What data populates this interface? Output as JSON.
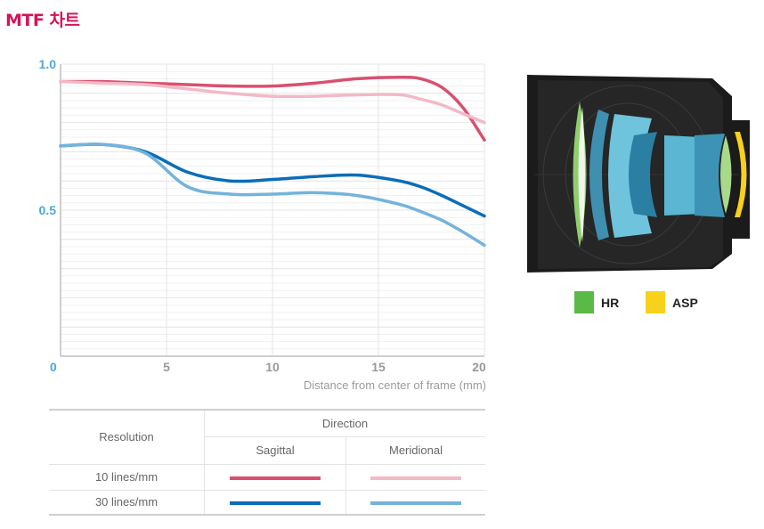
{
  "page_title": "MTF 차트",
  "chart_data": {
    "type": "line",
    "xlabel": "Distance from center of frame (mm)",
    "ylabel": "",
    "xlim": [
      0,
      20
    ],
    "ylim": [
      0,
      1.0
    ],
    "x_ticks": [
      "0",
      "5",
      "10",
      "15",
      "20"
    ],
    "y_ticks": [
      "0.5",
      "1.0"
    ],
    "grid": true,
    "x": [
      0,
      2,
      4,
      6,
      8,
      10,
      12,
      14,
      16,
      17,
      18,
      19,
      20
    ],
    "series": [
      {
        "name": "10 lines/mm Sagittal",
        "color": "#d9506f",
        "values": [
          0.94,
          0.94,
          0.935,
          0.93,
          0.925,
          0.925,
          0.935,
          0.95,
          0.955,
          0.95,
          0.92,
          0.85,
          0.74
        ]
      },
      {
        "name": "10 lines/mm Meridional",
        "color": "#f2b9c6",
        "values": [
          0.94,
          0.935,
          0.93,
          0.915,
          0.9,
          0.89,
          0.89,
          0.895,
          0.895,
          0.88,
          0.86,
          0.83,
          0.8
        ]
      },
      {
        "name": "30 lines/mm Sagittal",
        "color": "#0a6db8",
        "values": [
          0.72,
          0.725,
          0.7,
          0.63,
          0.6,
          0.605,
          0.615,
          0.62,
          0.6,
          0.58,
          0.55,
          0.515,
          0.48
        ]
      },
      {
        "name": "30 lines/mm Meridional",
        "color": "#74b3db",
        "values": [
          0.72,
          0.725,
          0.695,
          0.58,
          0.555,
          0.555,
          0.56,
          0.55,
          0.52,
          0.495,
          0.465,
          0.425,
          0.38
        ]
      }
    ]
  },
  "table": {
    "header_resolution": "Resolution",
    "header_direction": "Direction",
    "header_sagittal": "Sagittal",
    "header_meridional": "Meridional",
    "rows": [
      {
        "label": "10 lines/mm",
        "sagittal_color": "#d9506f",
        "meridional_color": "#f2b9c6"
      },
      {
        "label": "30 lines/mm",
        "sagittal_color": "#0a6db8",
        "meridional_color": "#74b3db"
      }
    ]
  },
  "lens_legend": [
    {
      "label": "HR",
      "color": "#5ab947"
    },
    {
      "label": "ASP",
      "color": "#f7d11c"
    }
  ]
}
